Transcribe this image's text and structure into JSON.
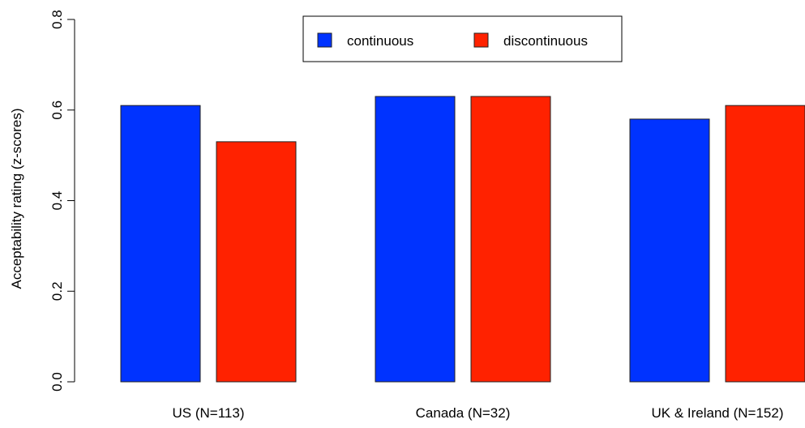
{
  "chart_data": {
    "type": "bar",
    "categories": [
      "US (N=113)",
      "Canada (N=32)",
      "UK & Ireland (N=152)"
    ],
    "series": [
      {
        "name": "continuous",
        "color": "#0033ff",
        "values": [
          0.61,
          0.63,
          0.58
        ]
      },
      {
        "name": "discontinuous",
        "color": "#ff2200",
        "values": [
          0.53,
          0.63,
          0.61
        ]
      }
    ],
    "xlabel": "",
    "ylabel": "Acceptability rating (z-scores)",
    "ylim": [
      0,
      0.8
    ],
    "yticks": [
      "0.0",
      "0.2",
      "0.4",
      "0.6",
      "0.8"
    ],
    "grid": false,
    "legend_position": "top-center"
  }
}
